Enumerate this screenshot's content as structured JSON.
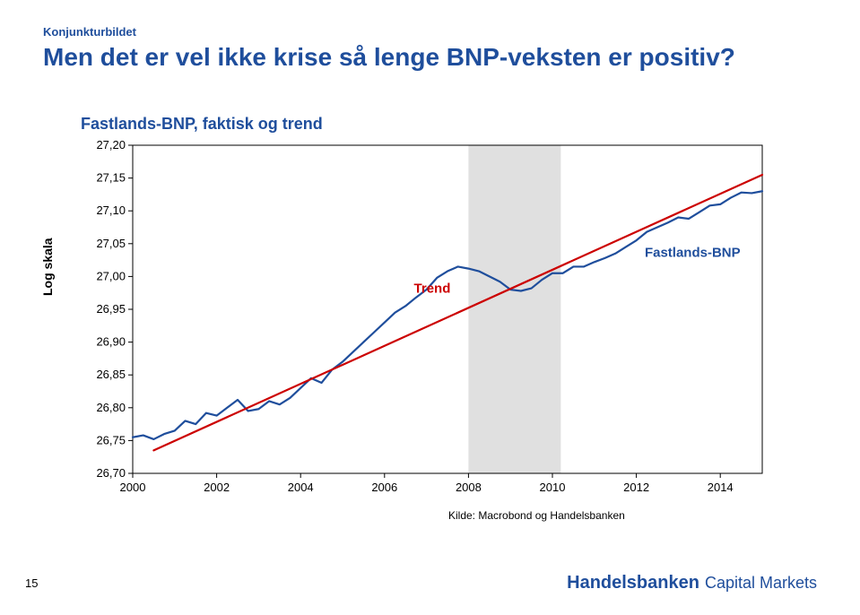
{
  "header": {
    "subtitle": "Konjunkturbildet",
    "subtitle_color": "#1f4e9c",
    "title": "Men det er vel ikke krise så lenge BNP-veksten er positiv?",
    "title_color": "#1f4e9c"
  },
  "chart": {
    "type": "line",
    "title": "Fastlands-BNP, faktisk og trend",
    "title_color": "#1f4e9c",
    "ylabel": "Log skala",
    "ylabel_color": "#000000",
    "background_color": "#ffffff",
    "plot_border_color": "#000000",
    "grid": false,
    "yaxis": {
      "min": 26.7,
      "max": 27.2,
      "ticks": [
        26.7,
        26.75,
        26.8,
        26.85,
        26.9,
        26.95,
        27.0,
        27.05,
        27.1,
        27.15,
        27.2
      ],
      "tick_labels": [
        "26,70",
        "26,75",
        "26,80",
        "26,85",
        "26,90",
        "26,95",
        "27,00",
        "27,05",
        "27,10",
        "27,15",
        "27,20"
      ],
      "label_fontsize": 13
    },
    "xaxis": {
      "min": 2000,
      "max": 2015,
      "ticks": [
        2000,
        2002,
        2004,
        2006,
        2008,
        2010,
        2012,
        2014
      ],
      "tick_labels": [
        "2000",
        "2002",
        "2004",
        "2006",
        "2008",
        "2010",
        "2012",
        "2014"
      ],
      "label_fontsize": 13
    },
    "shaded_band": {
      "x_start": 2008.0,
      "x_end": 2010.2,
      "color": "#e0e0e0"
    },
    "series": [
      {
        "name": "Fastlands-BNP",
        "label": "Fastlands-BNP",
        "label_color": "#1f4e9c",
        "label_bold": true,
        "label_pos": {
          "x": 2012.2,
          "y": 27.03
        },
        "color": "#1f4e9c",
        "line_width": 2.2,
        "points": [
          [
            2000.0,
            26.755
          ],
          [
            2000.25,
            26.758
          ],
          [
            2000.5,
            26.752
          ],
          [
            2000.75,
            26.76
          ],
          [
            2001.0,
            26.765
          ],
          [
            2001.25,
            26.78
          ],
          [
            2001.5,
            26.775
          ],
          [
            2001.75,
            26.792
          ],
          [
            2002.0,
            26.788
          ],
          [
            2002.25,
            26.8
          ],
          [
            2002.5,
            26.812
          ],
          [
            2002.75,
            26.795
          ],
          [
            2003.0,
            26.798
          ],
          [
            2003.25,
            26.81
          ],
          [
            2003.5,
            26.805
          ],
          [
            2003.75,
            26.815
          ],
          [
            2004.0,
            26.83
          ],
          [
            2004.25,
            26.845
          ],
          [
            2004.5,
            26.838
          ],
          [
            2004.75,
            26.858
          ],
          [
            2005.0,
            26.87
          ],
          [
            2005.25,
            26.885
          ],
          [
            2005.5,
            26.9
          ],
          [
            2005.75,
            26.915
          ],
          [
            2006.0,
            26.93
          ],
          [
            2006.25,
            26.945
          ],
          [
            2006.5,
            26.955
          ],
          [
            2006.75,
            26.968
          ],
          [
            2007.0,
            26.98
          ],
          [
            2007.25,
            26.998
          ],
          [
            2007.5,
            27.008
          ],
          [
            2007.75,
            27.015
          ],
          [
            2008.0,
            27.012
          ],
          [
            2008.25,
            27.008
          ],
          [
            2008.5,
            27.0
          ],
          [
            2008.75,
            26.992
          ],
          [
            2009.0,
            26.98
          ],
          [
            2009.25,
            26.978
          ],
          [
            2009.5,
            26.982
          ],
          [
            2009.75,
            26.995
          ],
          [
            2010.0,
            27.005
          ],
          [
            2010.25,
            27.005
          ],
          [
            2010.5,
            27.015
          ],
          [
            2010.75,
            27.015
          ],
          [
            2011.0,
            27.022
          ],
          [
            2011.25,
            27.028
          ],
          [
            2011.5,
            27.035
          ],
          [
            2011.75,
            27.045
          ],
          [
            2012.0,
            27.055
          ],
          [
            2012.25,
            27.068
          ],
          [
            2012.5,
            27.075
          ],
          [
            2012.75,
            27.082
          ],
          [
            2013.0,
            27.09
          ],
          [
            2013.25,
            27.088
          ],
          [
            2013.5,
            27.098
          ],
          [
            2013.75,
            27.108
          ],
          [
            2014.0,
            27.11
          ],
          [
            2014.25,
            27.12
          ],
          [
            2014.5,
            27.128
          ],
          [
            2014.75,
            27.127
          ],
          [
            2015.0,
            27.13
          ]
        ]
      },
      {
        "name": "Trend",
        "label": "Trend",
        "label_color": "#cc0000",
        "label_bold": true,
        "label_pos": {
          "x": 2006.7,
          "y": 26.975
        },
        "color": "#cc0000",
        "line_width": 2.2,
        "points": [
          [
            2000.5,
            26.735
          ],
          [
            2015.0,
            27.155
          ]
        ]
      }
    ],
    "source": "Kilde: Macrobond og Handelsbanken",
    "source_color": "#000000"
  },
  "footer": {
    "page_number": "15",
    "logo_main": "Handelsbanken",
    "logo_sub": "Capital Markets",
    "logo_color": "#1f4e9c"
  }
}
